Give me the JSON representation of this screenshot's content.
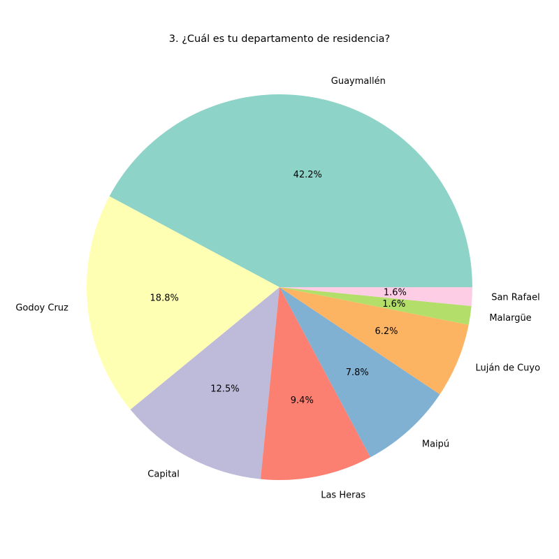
{
  "chart_data": {
    "type": "pie",
    "title": "3. ¿Cuál es tu departamento de residencia?",
    "slices": [
      {
        "label": "Guaymallén",
        "value": 27,
        "percent_label": "42.2%",
        "color": "#8dd3c7"
      },
      {
        "label": "Godoy Cruz",
        "value": 12,
        "percent_label": "18.8%",
        "color": "#ffffb3"
      },
      {
        "label": "Capital",
        "value": 8,
        "percent_label": "12.5%",
        "color": "#bebada"
      },
      {
        "label": "Las Heras",
        "value": 6,
        "percent_label": "9.4%",
        "color": "#fb8072"
      },
      {
        "label": "Maipú",
        "value": 5,
        "percent_label": "7.8%",
        "color": "#80b1d3"
      },
      {
        "label": "Luján de Cuyo",
        "value": 4,
        "percent_label": "6.2%",
        "color": "#fdb462"
      },
      {
        "label": "Malargüe",
        "value": 1,
        "percent_label": "1.6%",
        "color": "#b3de69"
      },
      {
        "label": "San Rafael",
        "value": 1,
        "percent_label": "1.6%",
        "color": "#fccde5"
      }
    ],
    "start_angle_deg": 0,
    "direction": "counterclockwise",
    "legend": "none"
  }
}
